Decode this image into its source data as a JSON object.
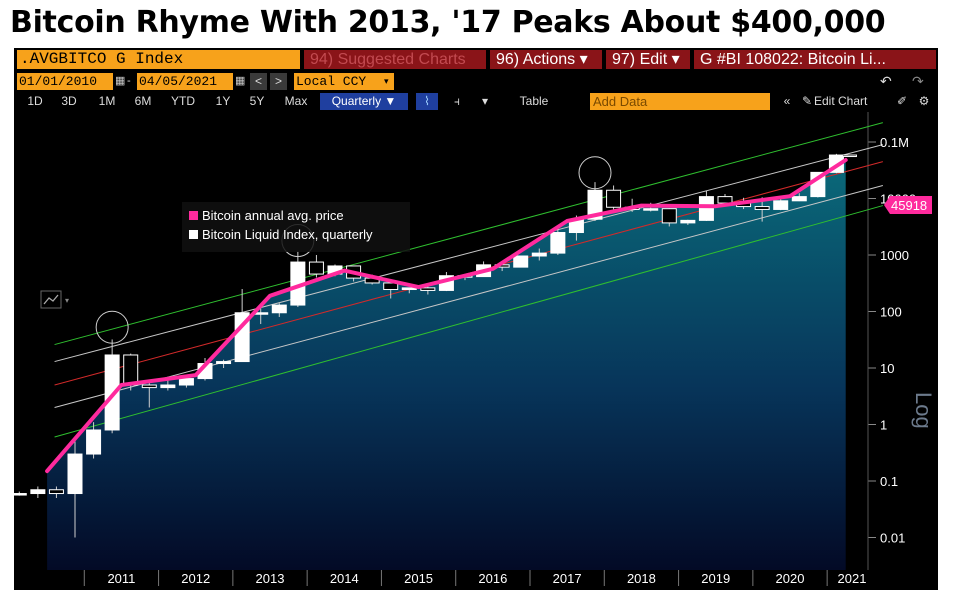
{
  "headline": "Bitcoin Rhyme With 2013, '17 Peaks About $400,000",
  "toolbar": {
    "ticker": ".AVGBITCO G Index",
    "suggested": "94) Suggested Charts",
    "actions": "96) Actions ▾",
    "edit": "97) Edit ▾",
    "chart_title": "G #BI 108022: Bitcoin Li...",
    "start_date": "01/01/2010",
    "end_date": "04/05/2021",
    "currency": "Local CCY",
    "ranges": [
      "1D",
      "3D",
      "1M",
      "6M",
      "YTD",
      "1Y",
      "5Y",
      "Max"
    ],
    "frequency": "Quarterly ▼",
    "table": "Table",
    "add_data": "Add Data",
    "edit_chart": "Edit Chart"
  },
  "chart_data": {
    "type": "line",
    "scale": "log",
    "ylabel": "Log",
    "yticks": [
      "0.01",
      "0.1",
      "1",
      "10",
      "100",
      "1000",
      "10000",
      "0.1M"
    ],
    "ylim": [
      0.0025,
      200000
    ],
    "years": [
      "2011",
      "2012",
      "2013",
      "2014",
      "2015",
      "2016",
      "2017",
      "2018",
      "2019",
      "2020",
      "2021"
    ],
    "last_price": "45918",
    "legend": [
      "Bitcoin annual avg. price",
      "Bitcoin Liquid Index, quarterly"
    ],
    "colors": {
      "avg": "#ff2a9d",
      "candle": "#ffffff",
      "upper_channel": "#2fbf2f",
      "mid_channel": "#c7c7c7",
      "trend": "#d22a2a",
      "area_top": "#0a6a7a"
    },
    "series": [
      {
        "name": "Bitcoin annual avg. price",
        "x": [
          2010.5,
          2011.5,
          2012.5,
          2013.5,
          2014.5,
          2015.5,
          2016.5,
          2017.5,
          2018.5,
          2019.5,
          2020.5,
          2021.25
        ],
        "values": [
          0.15,
          5,
          7.5,
          190,
          530,
          270,
          570,
          4000,
          7500,
          7300,
          11000,
          48000
        ]
      }
    ],
    "candles": [
      {
        "x": 2010.125,
        "open": 0.06,
        "close": 0.06,
        "high": 0.065,
        "low": 0.055
      },
      {
        "x": 2010.375,
        "open": 0.06,
        "close": 0.07,
        "high": 0.08,
        "low": 0.05
      },
      {
        "x": 2010.625,
        "open": 0.07,
        "close": 0.06,
        "high": 0.08,
        "low": 0.05
      },
      {
        "x": 2010.875,
        "open": 0.06,
        "close": 0.3,
        "high": 0.5,
        "low": 0.01
      },
      {
        "x": 2011.125,
        "open": 0.3,
        "close": 0.8,
        "high": 1.1,
        "low": 0.25
      },
      {
        "x": 2011.375,
        "open": 0.8,
        "close": 17,
        "high": 32,
        "low": 0.7
      },
      {
        "x": 2011.625,
        "open": 17,
        "close": 5,
        "high": 18,
        "low": 4
      },
      {
        "x": 2011.875,
        "open": 5,
        "close": 4.5,
        "high": 6,
        "low": 2
      },
      {
        "x": 2012.125,
        "open": 4.5,
        "close": 5,
        "high": 6,
        "low": 4
      },
      {
        "x": 2012.375,
        "open": 5,
        "close": 6.5,
        "high": 7,
        "low": 4.5
      },
      {
        "x": 2012.625,
        "open": 6.5,
        "close": 12,
        "high": 15,
        "low": 6
      },
      {
        "x": 2012.875,
        "open": 12,
        "close": 13,
        "high": 14,
        "low": 10
      },
      {
        "x": 2013.125,
        "open": 13,
        "close": 95,
        "high": 250,
        "low": 13
      },
      {
        "x": 2013.375,
        "open": 95,
        "close": 95,
        "high": 130,
        "low": 60
      },
      {
        "x": 2013.625,
        "open": 95,
        "close": 130,
        "high": 140,
        "low": 80
      },
      {
        "x": 2013.875,
        "open": 130,
        "close": 750,
        "high": 1150,
        "low": 120
      },
      {
        "x": 2014.125,
        "open": 750,
        "close": 460,
        "high": 1000,
        "low": 400
      },
      {
        "x": 2014.375,
        "open": 460,
        "close": 640,
        "high": 680,
        "low": 420
      },
      {
        "x": 2014.625,
        "open": 640,
        "close": 390,
        "high": 650,
        "low": 340
      },
      {
        "x": 2014.875,
        "open": 390,
        "close": 320,
        "high": 450,
        "low": 300
      },
      {
        "x": 2015.125,
        "open": 320,
        "close": 245,
        "high": 330,
        "low": 170
      },
      {
        "x": 2015.375,
        "open": 245,
        "close": 262,
        "high": 265,
        "low": 210
      },
      {
        "x": 2015.625,
        "open": 262,
        "close": 236,
        "high": 315,
        "low": 200
      },
      {
        "x": 2015.875,
        "open": 236,
        "close": 430,
        "high": 500,
        "low": 230
      },
      {
        "x": 2016.125,
        "open": 430,
        "close": 415,
        "high": 440,
        "low": 360
      },
      {
        "x": 2016.375,
        "open": 415,
        "close": 670,
        "high": 770,
        "low": 410
      },
      {
        "x": 2016.625,
        "open": 670,
        "close": 610,
        "high": 680,
        "low": 520
      },
      {
        "x": 2016.875,
        "open": 610,
        "close": 960,
        "high": 980,
        "low": 600
      },
      {
        "x": 2017.125,
        "open": 960,
        "close": 1080,
        "high": 1300,
        "low": 800
      },
      {
        "x": 2017.375,
        "open": 1080,
        "close": 2500,
        "high": 3000,
        "low": 1000
      },
      {
        "x": 2017.625,
        "open": 2500,
        "close": 4300,
        "high": 5000,
        "low": 1800
      },
      {
        "x": 2017.875,
        "open": 4300,
        "close": 14000,
        "high": 19500,
        "low": 4000
      },
      {
        "x": 2018.125,
        "open": 14000,
        "close": 7000,
        "high": 17000,
        "low": 6000
      },
      {
        "x": 2018.375,
        "open": 7000,
        "close": 6400,
        "high": 9900,
        "low": 5800
      },
      {
        "x": 2018.625,
        "open": 6400,
        "close": 6600,
        "high": 8400,
        "low": 5900
      },
      {
        "x": 2018.875,
        "open": 6600,
        "close": 3700,
        "high": 6700,
        "low": 3200
      },
      {
        "x": 2019.125,
        "open": 3700,
        "close": 4100,
        "high": 4200,
        "low": 3400
      },
      {
        "x": 2019.375,
        "open": 4100,
        "close": 10800,
        "high": 13800,
        "low": 4000
      },
      {
        "x": 2019.625,
        "open": 10800,
        "close": 8300,
        "high": 12000,
        "low": 7800
      },
      {
        "x": 2019.875,
        "open": 8300,
        "close": 7200,
        "high": 10300,
        "low": 6500
      },
      {
        "x": 2020.125,
        "open": 7200,
        "close": 6400,
        "high": 10500,
        "low": 3900
      },
      {
        "x": 2020.375,
        "open": 6400,
        "close": 9100,
        "high": 10000,
        "low": 6200
      },
      {
        "x": 2020.625,
        "open": 9100,
        "close": 10800,
        "high": 12400,
        "low": 9000
      },
      {
        "x": 2020.875,
        "open": 10800,
        "close": 29000,
        "high": 29300,
        "low": 10400
      },
      {
        "x": 2021.125,
        "open": 29000,
        "close": 58800,
        "high": 61700,
        "low": 28000
      },
      {
        "x": 2021.3,
        "open": 58800,
        "close": 58000,
        "high": 60000,
        "low": 55000
      }
    ],
    "channels": {
      "upper": {
        "from": [
          2010.6,
          26
        ],
        "to": [
          2021.75,
          220000
        ]
      },
      "mid": {
        "from": [
          2010.6,
          13
        ],
        "to": [
          2021.75,
          90000
        ]
      },
      "trend": {
        "from": [
          2010.6,
          5
        ],
        "to": [
          2021.75,
          45000
        ]
      },
      "lower": {
        "from": [
          2010.6,
          2
        ],
        "to": [
          2021.75,
          17000
        ]
      },
      "bottom": {
        "from": [
          2010.6,
          0.6
        ],
        "to": [
          2021.75,
          7500
        ]
      }
    },
    "peak_markers": [
      {
        "x": 2011.375,
        "y": 35
      },
      {
        "x": 2013.875,
        "y": 1200
      },
      {
        "x": 2017.875,
        "y": 19000
      }
    ]
  }
}
